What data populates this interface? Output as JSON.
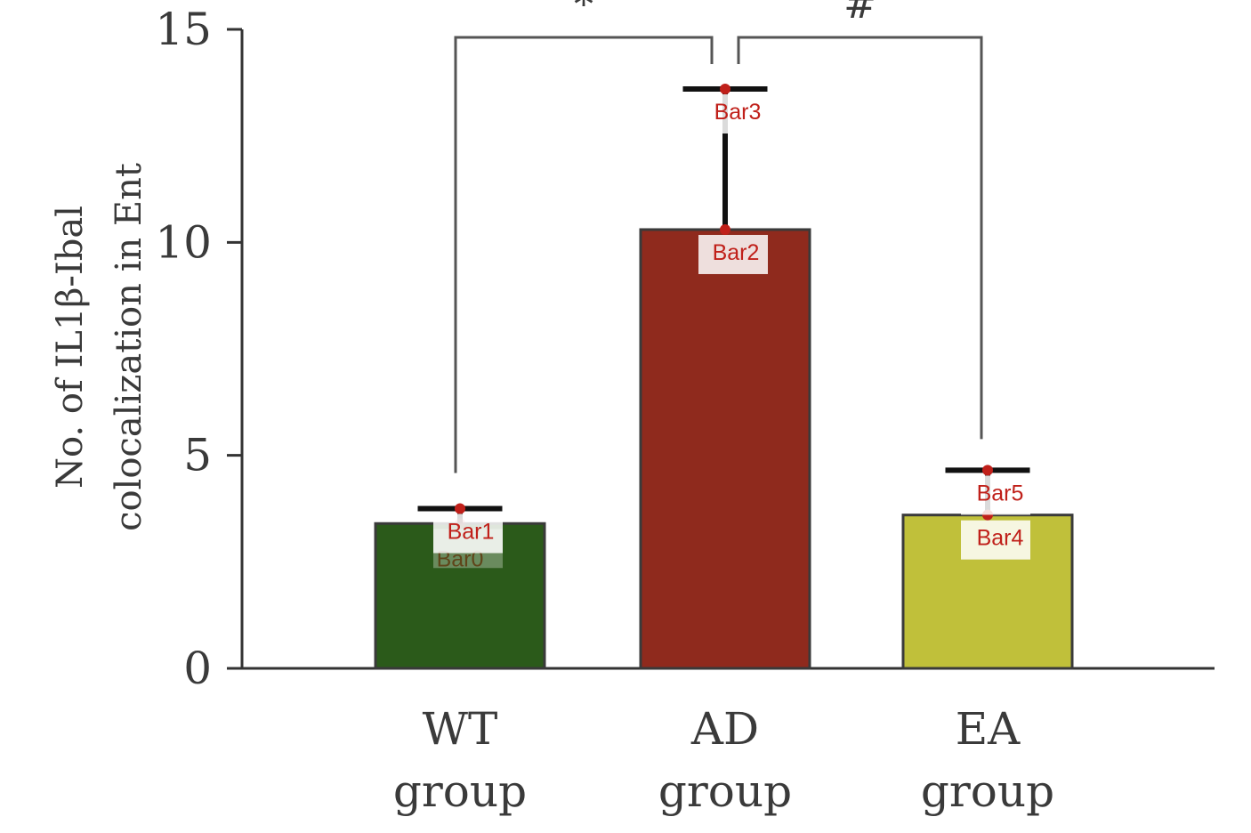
{
  "chart_data": {
    "type": "bar",
    "categories": [
      [
        "WT",
        "group"
      ],
      [
        "AD",
        "group"
      ],
      [
        "EA",
        "group"
      ]
    ],
    "values": [
      3.4,
      10.3,
      3.6
    ],
    "error_upper": [
      3.75,
      13.6,
      4.65
    ],
    "ylabel": [
      "No. of IL1β-Ibal",
      "colocalization in Ent"
    ],
    "ylim": [
      0,
      15
    ],
    "yticks": [
      0,
      5,
      10,
      15
    ],
    "grid": false,
    "colors": [
      "#2b5a1a",
      "#8f2a1d",
      "#c0c03a"
    ],
    "significance": [
      {
        "from": 0,
        "to": 1,
        "label": "*"
      },
      {
        "from": 1,
        "to": 2,
        "label": "#"
      }
    ],
    "annotations": [
      {
        "label": "Bar0",
        "bar": 0,
        "y": 3.4,
        "faded": true
      },
      {
        "label": "Bar1",
        "bar": 0,
        "y": 3.75,
        "faded": false
      },
      {
        "label": "Bar2",
        "bar": 1,
        "y": 10.3,
        "faded": false
      },
      {
        "label": "Bar3",
        "bar": 1,
        "y": 13.6,
        "faded": false
      },
      {
        "label": "Bar4",
        "bar": 2,
        "y": 3.6,
        "faded": false
      },
      {
        "label": "Bar5",
        "bar": 2,
        "y": 4.65,
        "faded": false
      }
    ]
  }
}
